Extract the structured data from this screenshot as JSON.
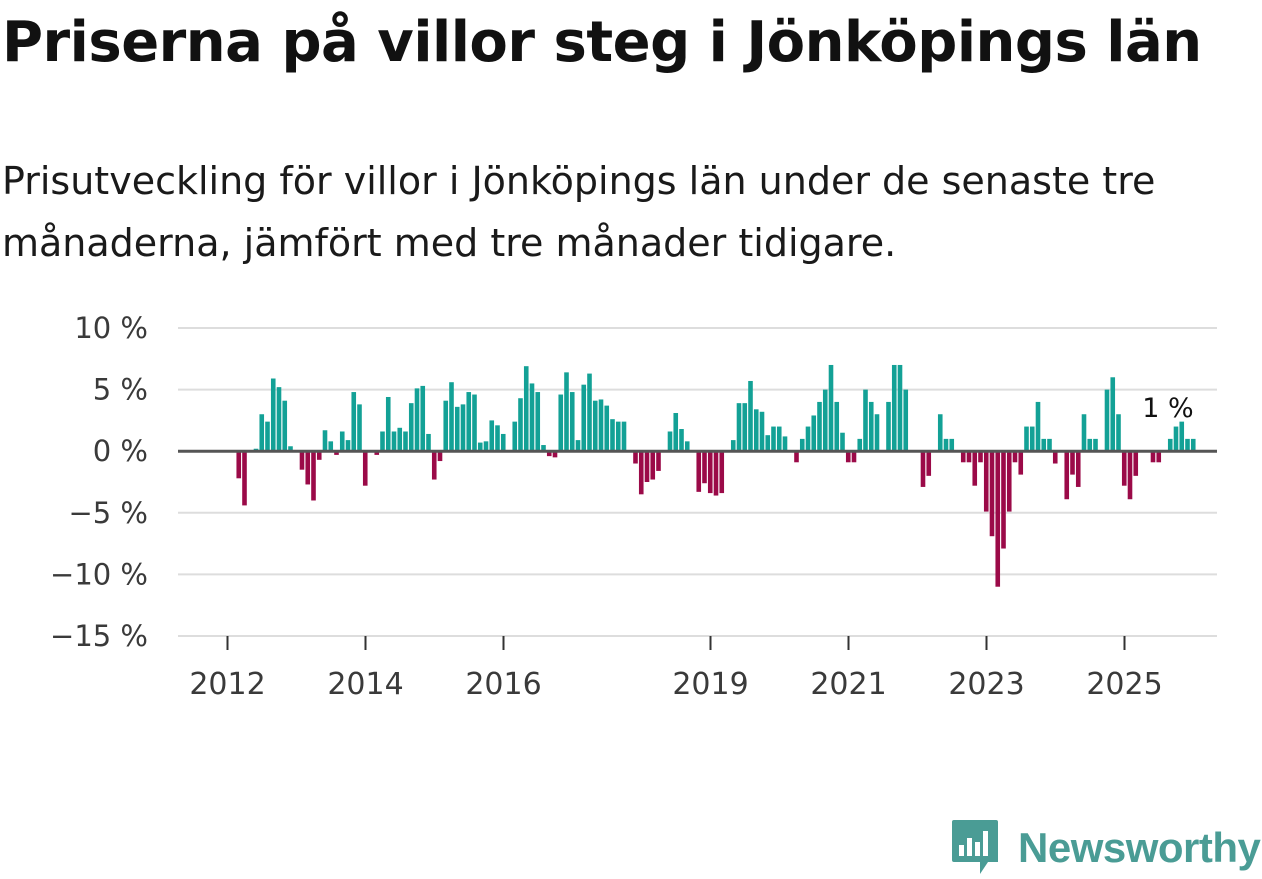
{
  "title": "Priserna på villor steg i Jönköpings län",
  "subtitle": "Prisutveckling för villor i Jönköpings län under de senaste tre månaderna, jämfört med tre månader tidigare.",
  "colors": {
    "positive": "#13a196",
    "negative": "#9b0a48",
    "grid": "#dddddd",
    "zero": "#555555",
    "brand": "#4a9c95"
  },
  "brand": {
    "name": "Newsworthy",
    "icon": "newsworthy-logo-icon"
  },
  "chart_data": {
    "type": "bar",
    "title": "Priserna på villor steg i Jönköpings län",
    "xlabel": "",
    "ylabel": "",
    "ylim": [
      -15,
      10
    ],
    "y_ticks": [
      10,
      5,
      0,
      -5,
      -10,
      -15
    ],
    "y_tick_labels": [
      "10 %",
      "5 %",
      "0 %",
      "−5 %",
      "−10 %",
      "−15 %"
    ],
    "x_ticks": [
      {
        "label": "2012",
        "month_index": 0
      },
      {
        "label": "2014",
        "month_index": 24
      },
      {
        "label": "2016",
        "month_index": 48
      },
      {
        "label": "2019",
        "month_index": 84
      },
      {
        "label": "2021",
        "month_index": 108
      },
      {
        "label": "2023",
        "month_index": 132
      },
      {
        "label": "2025",
        "month_index": 156
      }
    ],
    "start_month": "2011-10",
    "end_label": "1 %",
    "series": [
      {
        "name": "Prisutveckling",
        "values": [
          0,
          0,
          0,
          -2.2,
          -4.4,
          0,
          0.2,
          3,
          2.4,
          5.9,
          5.2,
          4.1,
          0.4,
          0,
          -1.5,
          -2.7,
          -4,
          -0.7,
          1.7,
          0.8,
          -0.3,
          1.6,
          0.9,
          4.8,
          3.8,
          -2.8,
          0,
          -0.3,
          1.6,
          4.4,
          1.6,
          1.9,
          1.6,
          3.9,
          5.1,
          5.3,
          1.4,
          -2.3,
          -0.8,
          4.1,
          5.6,
          3.6,
          3.8,
          4.8,
          4.6,
          0.7,
          0.8,
          2.5,
          2.1,
          1.4,
          0,
          2.4,
          4.3,
          6.9,
          5.5,
          4.8,
          0.5,
          -0.4,
          -0.5,
          4.6,
          6.4,
          4.8,
          0.9,
          5.4,
          6.3,
          4.1,
          4.2,
          3.7,
          2.6,
          2.4,
          2.4,
          0,
          -1,
          -3.5,
          -2.5,
          -2.3,
          -1.6,
          0,
          1.6,
          3.1,
          1.8,
          0.8,
          0,
          -3.3,
          -2.6,
          -3.4,
          -3.6,
          -3.4,
          0,
          0.9,
          3.9,
          3.9,
          5.7,
          3.4,
          3.2,
          1.3,
          2,
          2,
          1.2,
          0,
          -0.9,
          1,
          2,
          2.9,
          4,
          5,
          7,
          4,
          1.5,
          -0.9,
          -0.9,
          1,
          5,
          4,
          3,
          0,
          4,
          7,
          7,
          5,
          0,
          0,
          -2.9,
          -2,
          0,
          3,
          1,
          1,
          0,
          -0.9,
          -0.9,
          -2.8,
          -0.9,
          -4.9,
          -6.9,
          -11,
          -7.9,
          -4.9,
          -0.9,
          -1.9,
          2,
          2,
          4,
          1,
          1,
          -1,
          0,
          -3.9,
          -1.9,
          -2.9,
          3,
          1,
          1,
          0,
          5,
          6,
          3,
          -2.8,
          -3.9,
          -2,
          0,
          0,
          -0.9,
          -0.9,
          0,
          1,
          2,
          2.4,
          1,
          1
        ]
      }
    ]
  }
}
